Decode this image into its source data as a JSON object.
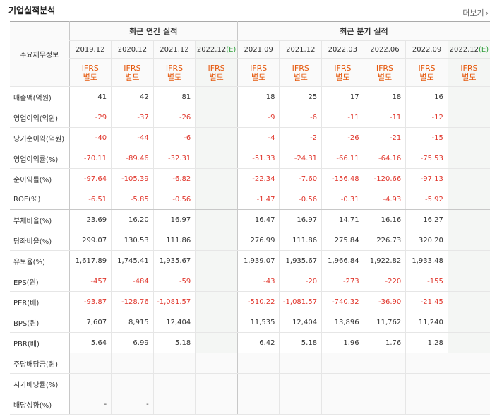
{
  "header": {
    "title": "기업실적분석",
    "more": "더보기"
  },
  "table": {
    "corner": "주요재무정보",
    "groups": [
      "최근 연간 실적",
      "최근 분기 실적"
    ],
    "columns": [
      {
        "period": "2019.12",
        "accounting": "IFRS",
        "basis": "별도"
      },
      {
        "period": "2020.12",
        "accounting": "IFRS",
        "basis": "별도"
      },
      {
        "period": "2021.12",
        "accounting": "IFRS",
        "basis": "별도"
      },
      {
        "period": "2022.12",
        "estimate": "(E)",
        "accounting": "IFRS",
        "basis": "별도"
      },
      {
        "period": "2021.09",
        "accounting": "IFRS",
        "basis": "별도"
      },
      {
        "period": "2021.12",
        "accounting": "IFRS",
        "basis": "별도"
      },
      {
        "period": "2022.03",
        "accounting": "IFRS",
        "basis": "별도"
      },
      {
        "period": "2022.06",
        "accounting": "IFRS",
        "basis": "별도"
      },
      {
        "period": "2022.09",
        "accounting": "IFRS",
        "basis": "별도"
      },
      {
        "period": "2022.12",
        "estimate": "(E)",
        "accounting": "IFRS",
        "basis": "별도"
      }
    ],
    "rows": [
      {
        "label": "매출액(억원)",
        "values": [
          "41",
          "42",
          "81",
          null,
          "18",
          "25",
          "17",
          "18",
          "16",
          null
        ]
      },
      {
        "label": "영업이익(억원)",
        "values": [
          "-29",
          "-37",
          "-26",
          null,
          "-9",
          "-6",
          "-11",
          "-11",
          "-12",
          null
        ]
      },
      {
        "label": "당기순이익(억원)",
        "values": [
          "-40",
          "-44",
          "-6",
          null,
          "-4",
          "-2",
          "-26",
          "-21",
          "-15",
          null
        ]
      },
      {
        "label": "영업이익률(%)",
        "values": [
          "-70.11",
          "-89.46",
          "-32.31",
          null,
          "-51.33",
          "-24.31",
          "-66.11",
          "-64.16",
          "-75.53",
          null
        ]
      },
      {
        "label": "순이익률(%)",
        "values": [
          "-97.64",
          "-105.39",
          "-6.82",
          null,
          "-22.34",
          "-7.60",
          "-156.48",
          "-120.66",
          "-97.13",
          null
        ]
      },
      {
        "label": "ROE(%)",
        "values": [
          "-6.51",
          "-5.85",
          "-0.56",
          null,
          "-1.47",
          "-0.56",
          "-0.31",
          "-4.93",
          "-5.92",
          null
        ]
      },
      {
        "label": "부채비율(%)",
        "values": [
          "23.69",
          "16.20",
          "16.97",
          null,
          "16.47",
          "16.97",
          "14.71",
          "16.16",
          "16.27",
          null
        ]
      },
      {
        "label": "당좌비율(%)",
        "values": [
          "299.07",
          "130.53",
          "111.86",
          null,
          "276.99",
          "111.86",
          "275.84",
          "226.73",
          "320.20",
          null
        ]
      },
      {
        "label": "유보율(%)",
        "values": [
          "1,617.89",
          "1,745.41",
          "1,935.67",
          null,
          "1,939.07",
          "1,935.67",
          "1,966.84",
          "1,922.82",
          "1,933.48",
          null
        ]
      },
      {
        "label": "EPS(원)",
        "values": [
          "-457",
          "-484",
          "-59",
          null,
          "-43",
          "-20",
          "-273",
          "-220",
          "-155",
          null
        ]
      },
      {
        "label": "PER(배)",
        "values": [
          "-93.87",
          "-128.76",
          "-1,081.57",
          null,
          "-510.22",
          "-1,081.57",
          "-740.32",
          "-36.90",
          "-21.45",
          null
        ]
      },
      {
        "label": "BPS(원)",
        "values": [
          "7,607",
          "8,915",
          "12,404",
          null,
          "11,535",
          "12,404",
          "13,896",
          "11,762",
          "11,240",
          null
        ]
      },
      {
        "label": "PBR(배)",
        "values": [
          "5.64",
          "6.99",
          "5.18",
          null,
          "6.42",
          "5.18",
          "1.96",
          "1.76",
          "1.28",
          null
        ]
      },
      {
        "label": "주당배당금(원)",
        "values": [
          null,
          null,
          null,
          null,
          null,
          null,
          null,
          null,
          null,
          null
        ]
      },
      {
        "label": "시가배당률(%)",
        "values": [
          null,
          null,
          null,
          null,
          null,
          null,
          null,
          null,
          null,
          null
        ]
      },
      {
        "label": "배당성향(%)",
        "values": [
          "-",
          "-",
          null,
          null,
          null,
          null,
          null,
          null,
          null,
          null
        ]
      }
    ]
  }
}
